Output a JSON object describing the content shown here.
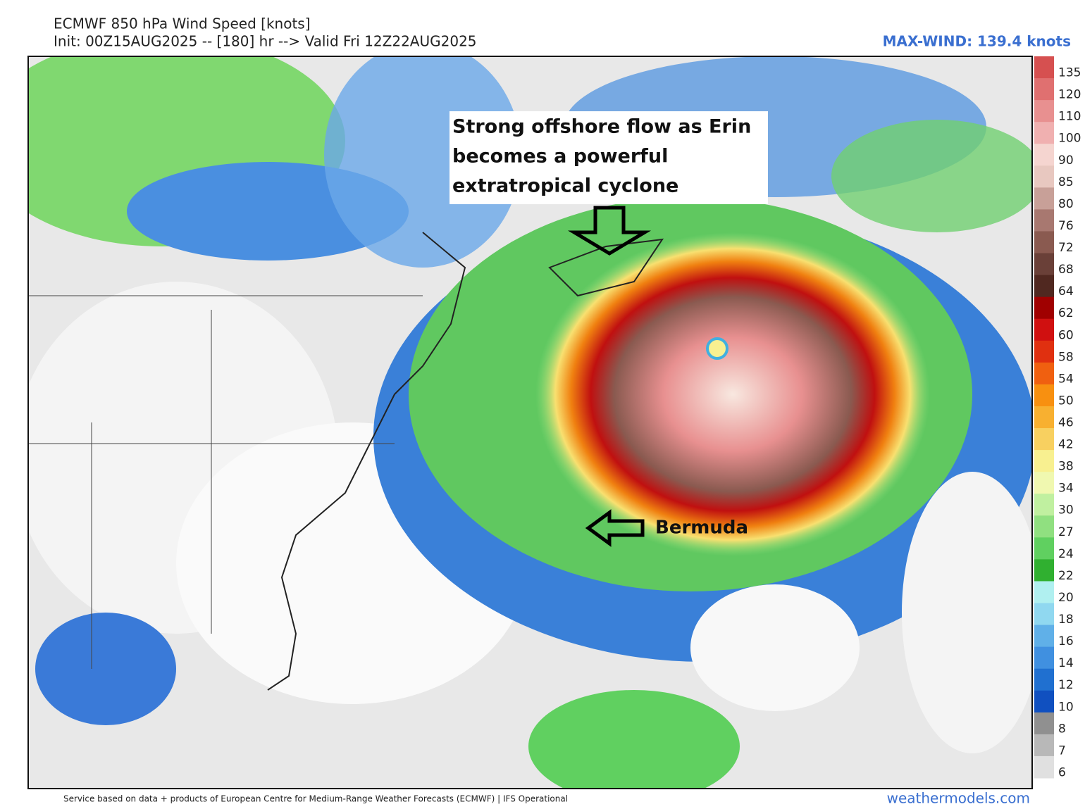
{
  "header": {
    "title": "ECMWF 850 hPa Wind Speed [knots]",
    "subtitle": "Init: 00Z15AUG2025 -- [180] hr --> Valid Fri 12Z22AUG2025",
    "max_wind": "MAX-WIND: 139.4 knots"
  },
  "annotations": {
    "callout": [
      "Strong offshore flow as Erin",
      "becomes a powerful",
      "extratropical cyclone"
    ],
    "bermuda": "Bermuda"
  },
  "colorbar": {
    "levels": [
      {
        "label": 135,
        "color": "#d65050"
      },
      {
        "label": 120,
        "color": "#e07070"
      },
      {
        "label": 110,
        "color": "#e89090"
      },
      {
        "label": 100,
        "color": "#f0b0b0"
      },
      {
        "label": 90,
        "color": "#f5d5d0"
      },
      {
        "label": 85,
        "color": "#e8c8c0"
      },
      {
        "label": 80,
        "color": "#c8a098"
      },
      {
        "label": 76,
        "color": "#a87870"
      },
      {
        "label": 72,
        "color": "#8a5a50"
      },
      {
        "label": 68,
        "color": "#6a4038"
      },
      {
        "label": 64,
        "color": "#502820"
      },
      {
        "label": 62,
        "color": "#a00000"
      },
      {
        "label": 60,
        "color": "#d01010"
      },
      {
        "label": 58,
        "color": "#e03010"
      },
      {
        "label": 54,
        "color": "#f06010"
      },
      {
        "label": 50,
        "color": "#f89010"
      },
      {
        "label": 46,
        "color": "#f8b030"
      },
      {
        "label": 42,
        "color": "#f8d060"
      },
      {
        "label": 38,
        "color": "#f8f090"
      },
      {
        "label": 34,
        "color": "#f0f8b0"
      },
      {
        "label": 30,
        "color": "#c0f0a0"
      },
      {
        "label": 27,
        "color": "#90e080"
      },
      {
        "label": 24,
        "color": "#60d060"
      },
      {
        "label": 22,
        "color": "#30b030"
      },
      {
        "label": 20,
        "color": "#b0f0f0"
      },
      {
        "label": 18,
        "color": "#90d8f0"
      },
      {
        "label": 16,
        "color": "#60b0e8"
      },
      {
        "label": 14,
        "color": "#4090e0"
      },
      {
        "label": 12,
        "color": "#2070d0"
      },
      {
        "label": 10,
        "color": "#1050c0"
      },
      {
        "label": 8,
        "color": "#909090"
      },
      {
        "label": 7,
        "color": "#b8b8b8"
      },
      {
        "label": 6,
        "color": "#e0e0e0"
      }
    ]
  },
  "footer": {
    "credit": "Service based on data + products of European Centre for Medium-Range Weather Forecasts (ECMWF) | IFS Operational",
    "site": "weathermodels.com"
  }
}
